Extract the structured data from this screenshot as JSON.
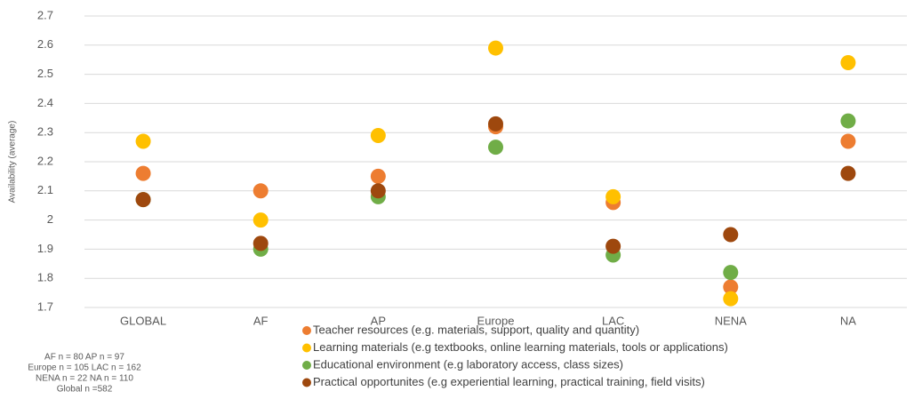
{
  "chart_data": {
    "type": "scatter",
    "y_label": "Availability (average)",
    "categories": [
      "GLOBAL",
      "AF",
      "AP",
      "Europe",
      "LAC",
      "NENA",
      "NA"
    ],
    "series": [
      {
        "name": "Teacher resources (e.g. materials, support, quality and quantity)",
        "color": "#ed7d31",
        "values": [
          2.16,
          2.1,
          2.15,
          2.32,
          2.06,
          1.77,
          2.27
        ]
      },
      {
        "name": "Learning materials (e.g textbooks, online learning materials, tools or applications)",
        "color": "#ffc000",
        "values": [
          2.27,
          2.0,
          2.29,
          2.59,
          2.08,
          1.73,
          2.54
        ]
      },
      {
        "name": "Educational environment (e.g laboratory access, class sizes)",
        "color": "#70ad47",
        "values": [
          2.07,
          1.9,
          2.08,
          2.25,
          1.88,
          1.82,
          2.34
        ]
      },
      {
        "name": "Practical opportunites (e.g experiential learning, practical training, field visits)",
        "color": "#9e480e",
        "values": [
          2.07,
          1.92,
          2.1,
          2.33,
          1.91,
          1.95,
          2.16
        ]
      }
    ],
    "ylim": [
      1.7,
      2.7
    ],
    "yticks": [
      1.7,
      1.8,
      1.9,
      2,
      2.1,
      2.2,
      2.3,
      2.4,
      2.5,
      2.6,
      2.7
    ],
    "grid": true,
    "notes": [
      "AF n = 80  AP n = 97",
      "Europe n = 105  LAC n = 162",
      "NENA n = 22  NA n = 110",
      "Global n =582"
    ]
  }
}
